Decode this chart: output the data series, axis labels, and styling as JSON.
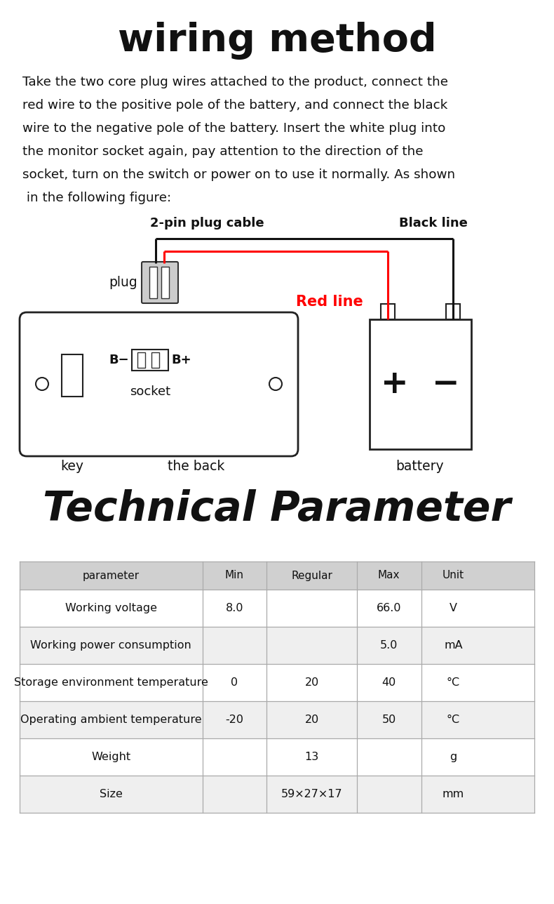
{
  "title1": "wiring method",
  "body_text": "Take the two core plug wires attached to the product, connect the\nred wire to the positive pole of the battery, and connect the black\nwire to the negative pole of the battery. Insert the white plug into\nthe monitor socket again, pay attention to the direction of the\nsocket, turn on the switch or power on to use it normally. As shown\n in the following figure:",
  "label_2pin": "2-pin plug cable",
  "label_black": "Black line",
  "label_red": "Red line",
  "label_plug": "plug",
  "label_socket": "socket",
  "label_key": "key",
  "label_back": "the back",
  "label_battery": "battery",
  "title2": "Technical Parameter",
  "table_header": [
    "parameter",
    "Min",
    "Regular",
    "Max",
    "Unit"
  ],
  "table_rows": [
    [
      "Working voltage",
      "8.0",
      "",
      "66.0",
      "V"
    ],
    [
      "Working power consumption",
      "",
      "",
      "5.0",
      "mA"
    ],
    [
      "Storage environment temperature",
      "0",
      "20",
      "40",
      "°C"
    ],
    [
      "Operating ambient temperature",
      "-20",
      "20",
      "50",
      "°C"
    ],
    [
      "Weight",
      "",
      "13",
      "",
      "g"
    ],
    [
      "Size",
      "",
      "59×27×17",
      "",
      "mm"
    ]
  ],
  "bg_color": "#ffffff",
  "red_color": "#ff0000",
  "table_header_bg": "#d0d0d0",
  "table_row_bg_odd": "#ffffff",
  "table_row_bg_even": "#efefef"
}
